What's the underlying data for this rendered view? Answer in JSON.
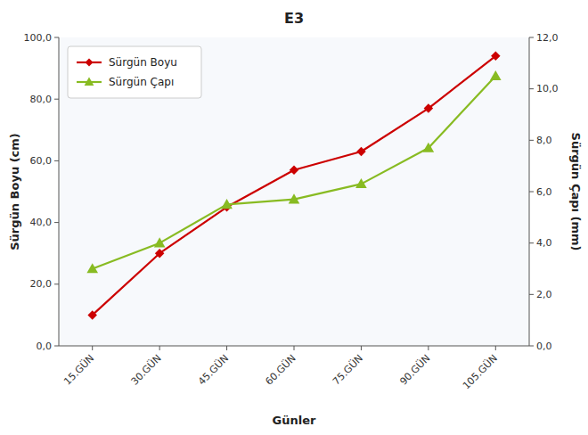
{
  "chart_data": {
    "type": "line",
    "title": "E3",
    "xlabel": "Günler",
    "ylabel": "Sürgün Boyu (cm)",
    "y2label": "Sürgün Çapı (mm)",
    "categories": [
      "15.GÜN",
      "30.GÜN",
      "45.GÜN",
      "60.GÜN",
      "75.GÜN",
      "90.GÜN",
      "105.GÜN"
    ],
    "series": [
      {
        "name": "Sürgün Boyu",
        "color": "#cc0000",
        "marker": "diamond",
        "axis": "y",
        "values": [
          10.0,
          30.0,
          45.0,
          57.0,
          63.0,
          77.0,
          94.0
        ]
      },
      {
        "name": "Sürgün Çapı",
        "color": "#88bb22",
        "marker": "triangle",
        "axis": "y2",
        "values": [
          3.0,
          4.0,
          5.5,
          5.7,
          6.3,
          7.7,
          10.5
        ]
      }
    ],
    "ylim": [
      0,
      100
    ],
    "yticks": [
      {
        "value": 0.0,
        "label": "0,0"
      },
      {
        "value": 20.0,
        "label": "20,0"
      },
      {
        "value": 40.0,
        "label": "40,0"
      },
      {
        "value": 60.0,
        "label": "60,0"
      },
      {
        "value": 80.0,
        "label": "80,0"
      },
      {
        "value": 100.0,
        "label": "100,0"
      }
    ],
    "y2lim": [
      0,
      12
    ],
    "y2ticks": [
      {
        "value": 0.0,
        "label": "0,0"
      },
      {
        "value": 2.0,
        "label": "2,0"
      },
      {
        "value": 4.0,
        "label": "4,0"
      },
      {
        "value": 6.0,
        "label": "6,0"
      },
      {
        "value": 8.0,
        "label": "8,0"
      },
      {
        "value": 10.0,
        "label": "10,0"
      },
      {
        "value": 12.0,
        "label": "12,0"
      }
    ],
    "grid": false,
    "legend": "upper left"
  }
}
